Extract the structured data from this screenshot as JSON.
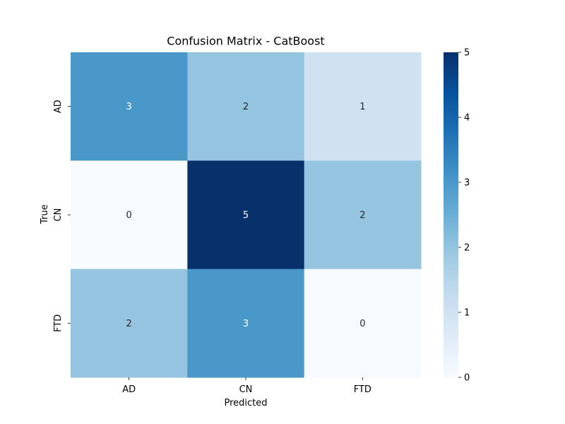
{
  "chart_data": {
    "type": "heatmap",
    "title": "Confusion Matrix - CatBoost",
    "xlabel": "Predicted",
    "ylabel": "True",
    "x_categories": [
      "AD",
      "CN",
      "FTD"
    ],
    "y_categories": [
      "AD",
      "CN",
      "FTD"
    ],
    "values": [
      [
        3,
        2,
        1
      ],
      [
        0,
        5,
        2
      ],
      [
        2,
        3,
        0
      ]
    ],
    "colormap": "Blues",
    "colorbar": {
      "min": 0,
      "max": 5,
      "ticks": [
        "0",
        "1",
        "2",
        "3",
        "4",
        "5"
      ]
    },
    "colors": {
      "low": "#f7fbff",
      "high": "#08306b",
      "annotation_dark": "#262626",
      "annotation_light": "#ffffff"
    }
  }
}
